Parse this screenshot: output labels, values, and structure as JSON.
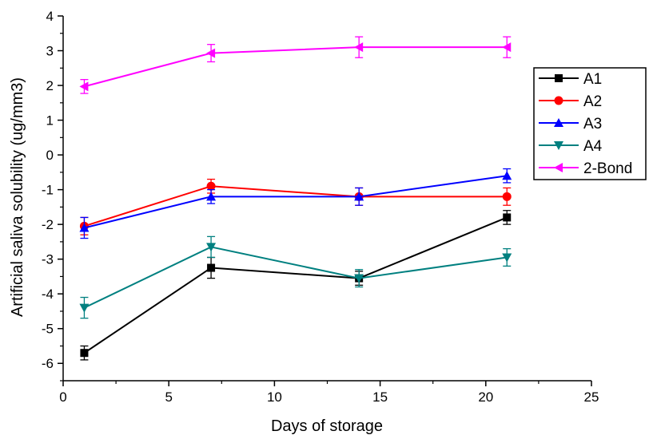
{
  "chart_data": {
    "type": "line",
    "title": "",
    "xlabel": "Days of storage",
    "ylabel": "Artificial saliva solubility (ug/mm3)",
    "xlim": [
      0,
      25
    ],
    "ylim": [
      -6.5,
      4
    ],
    "x_ticks": [
      0,
      5,
      10,
      15,
      20,
      25
    ],
    "y_ticks": [
      -6,
      -5,
      -4,
      -3,
      -2,
      -1,
      0,
      1,
      2,
      3,
      4
    ],
    "grid": false,
    "legend_position": "right",
    "x": [
      1,
      7,
      14,
      21
    ],
    "series": [
      {
        "name": "A1",
        "color": "#000000",
        "marker": "square",
        "values": [
          -5.7,
          -3.25,
          -3.55,
          -1.8
        ],
        "errors": [
          0.2,
          0.3,
          0.2,
          0.2
        ]
      },
      {
        "name": "A2",
        "color": "#ff0000",
        "marker": "circle",
        "values": [
          -2.05,
          -0.9,
          -1.2,
          -1.2
        ],
        "errors": [
          0.25,
          0.2,
          0.25,
          0.25
        ]
      },
      {
        "name": "A3",
        "color": "#0000ff",
        "marker": "triangle-up",
        "values": [
          -2.1,
          -1.2,
          -1.2,
          -0.6
        ],
        "errors": [
          0.3,
          0.2,
          0.25,
          0.2
        ]
      },
      {
        "name": "A4",
        "color": "#008080",
        "marker": "triangle-down",
        "values": [
          -4.4,
          -2.65,
          -3.55,
          -2.95
        ],
        "errors": [
          0.3,
          0.3,
          0.25,
          0.25
        ]
      },
      {
        "name": "2-Bond",
        "color": "#ff00ff",
        "marker": "triangle-left",
        "values": [
          1.97,
          2.93,
          3.1,
          3.1
        ],
        "errors": [
          0.2,
          0.25,
          0.3,
          0.3
        ]
      }
    ]
  }
}
